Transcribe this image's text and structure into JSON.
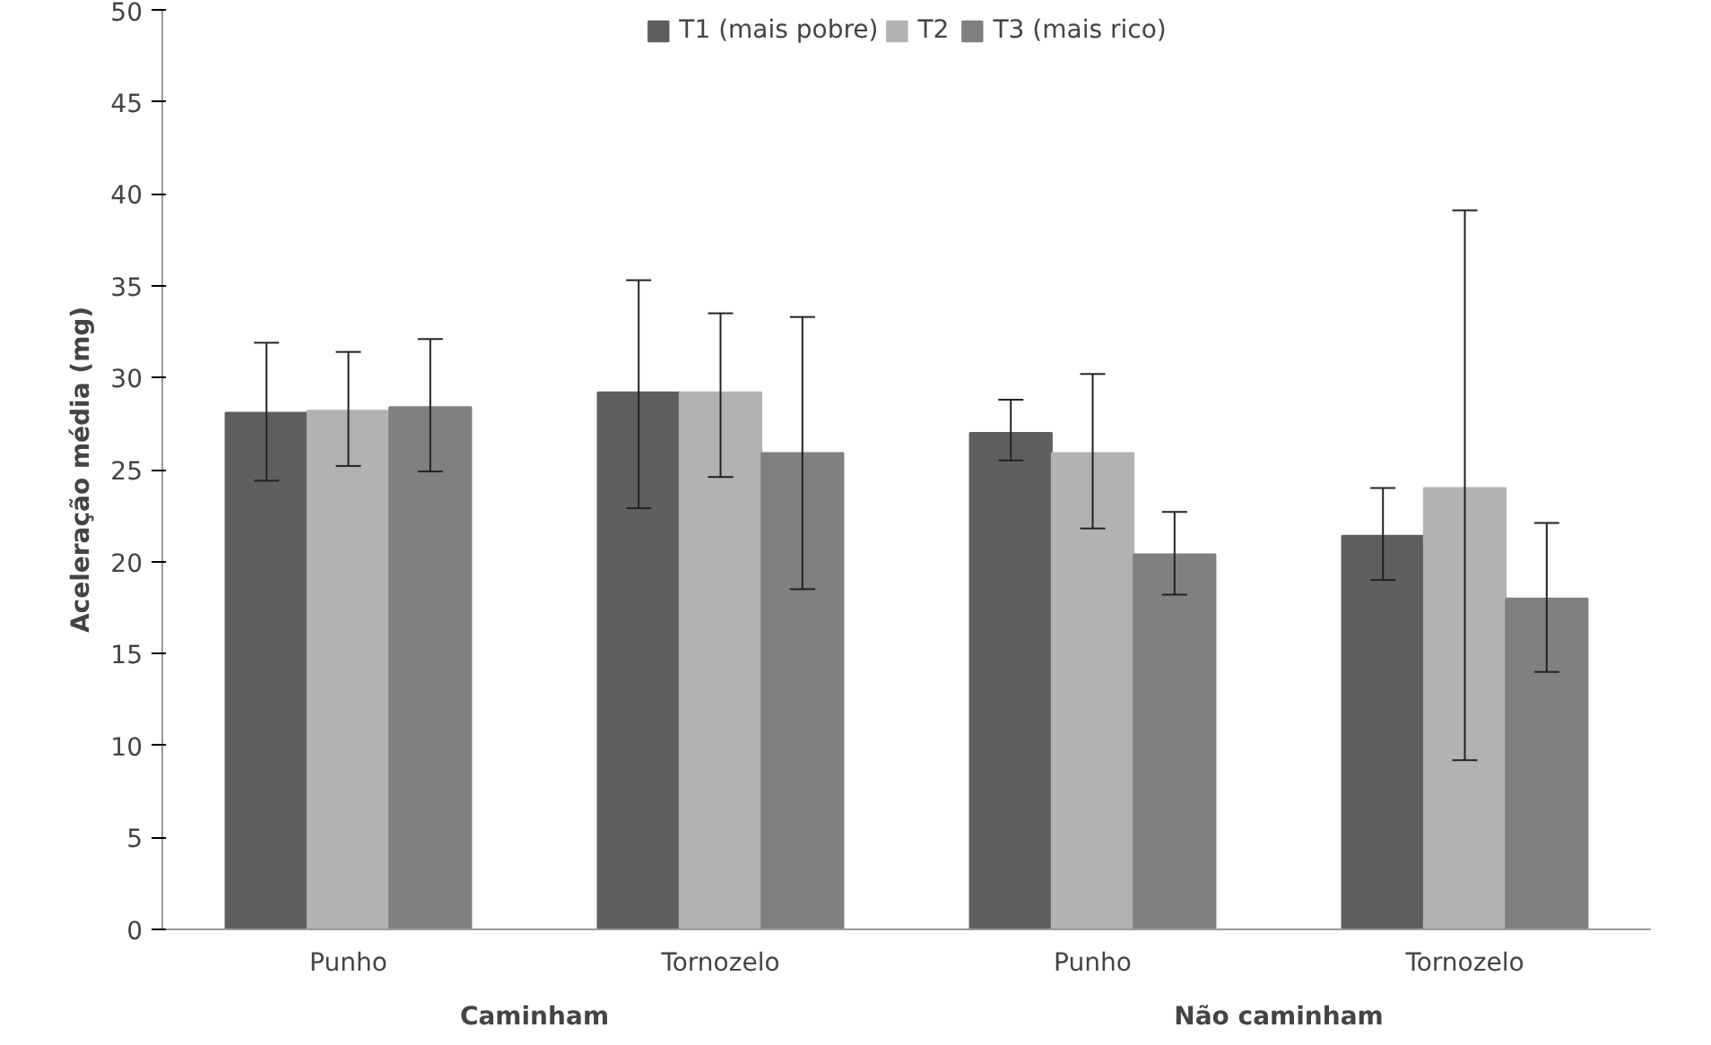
{
  "chart_data": {
    "type": "bar",
    "ylabel": "Aceleração média (mg)",
    "categories": [
      "Punho",
      "Tornozelo",
      "Punho",
      "Tornozelo"
    ],
    "annotations": [
      "Caminham",
      "Não caminham"
    ],
    "series": [
      {
        "name": "T1 (mais pobre)",
        "color": "#5f5f5f",
        "values": [
          28.1,
          29.2,
          27.0,
          21.4
        ],
        "errors": [
          [
            24.4,
            31.9
          ],
          [
            22.9,
            35.3
          ],
          [
            25.5,
            28.8
          ],
          [
            19.0,
            24.0
          ]
        ]
      },
      {
        "name": "T2",
        "color": "#b2b2b2",
        "values": [
          28.2,
          29.2,
          25.9,
          24.0
        ],
        "errors": [
          [
            25.2,
            31.4
          ],
          [
            24.6,
            33.5
          ],
          [
            21.8,
            30.2
          ],
          [
            9.2,
            39.1
          ]
        ]
      },
      {
        "name": "T3 (mais rico)",
        "color": "#808080",
        "values": [
          28.4,
          25.9,
          20.4,
          18.0
        ],
        "errors": [
          [
            24.9,
            32.1
          ],
          [
            18.5,
            33.3
          ],
          [
            18.2,
            22.7
          ],
          [
            14.0,
            22.1
          ]
        ]
      }
    ],
    "ylim": [
      0,
      50
    ],
    "yticks": [
      0,
      5,
      10,
      15,
      20,
      25,
      30,
      35,
      40,
      45,
      50
    ],
    "grid": false,
    "legend": "top"
  }
}
